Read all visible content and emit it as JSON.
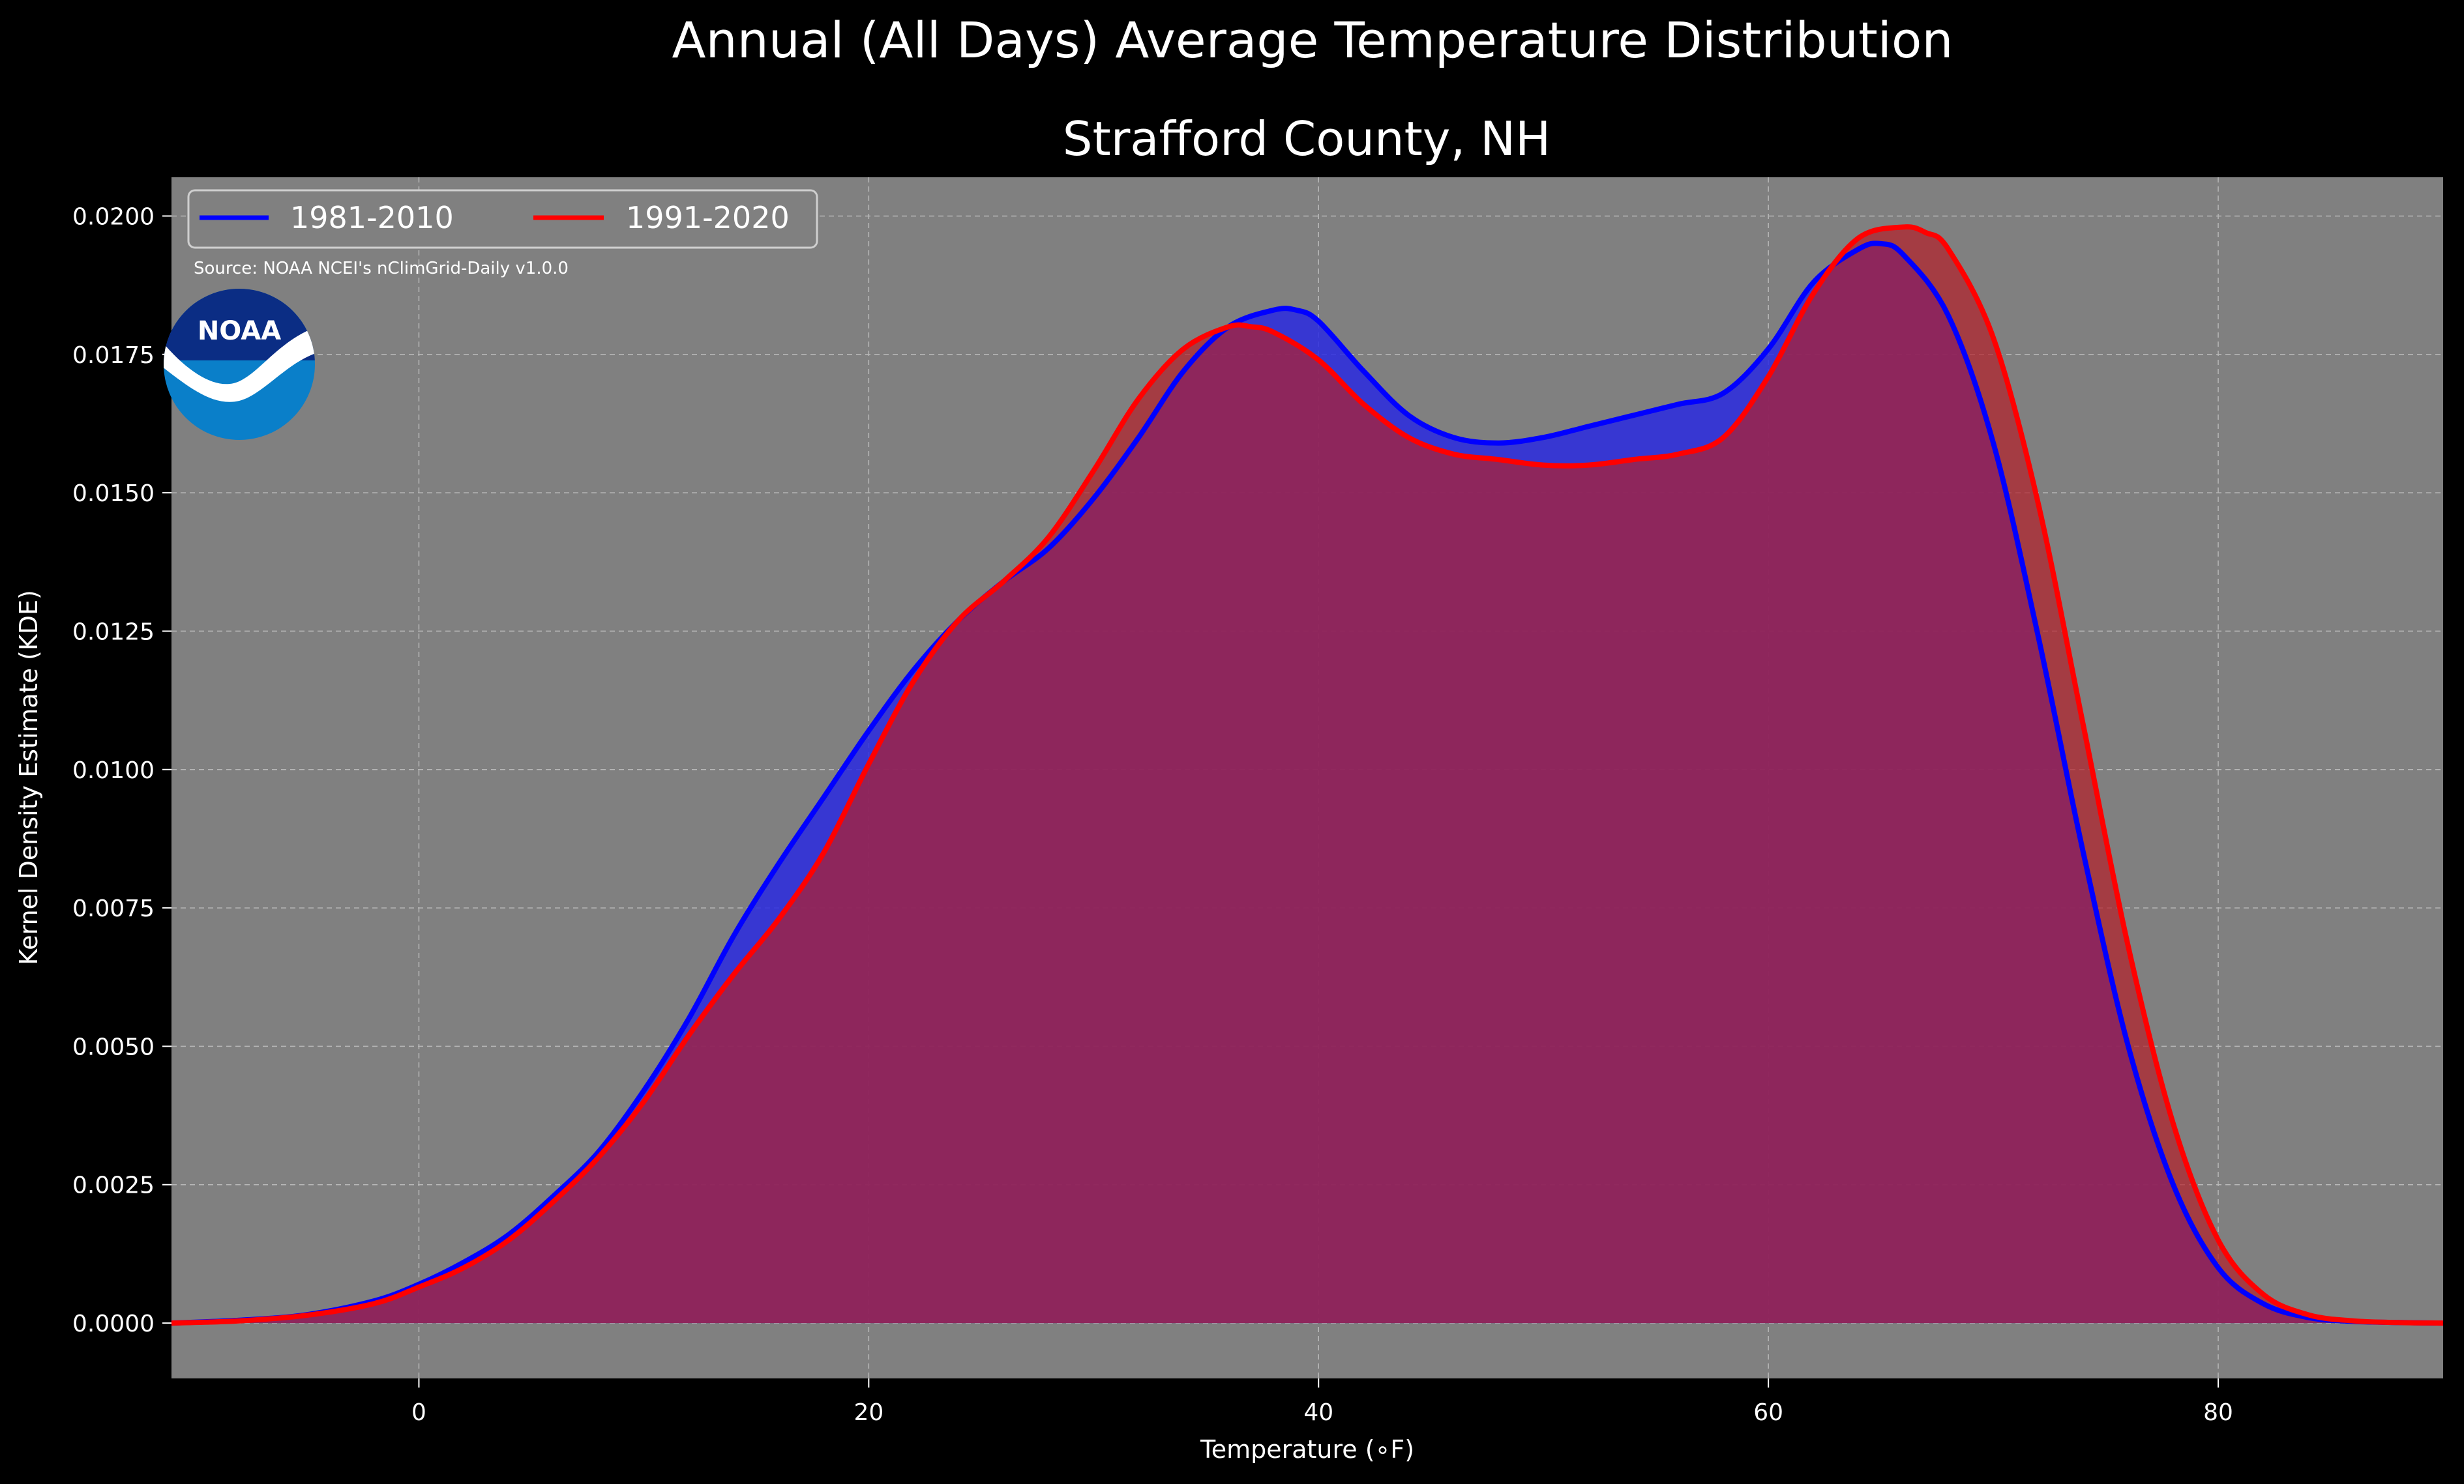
{
  "chart_data": {
    "type": "area",
    "suptitle": "Annual (All Days) Average Temperature Distribution",
    "title": "Strafford County, NH",
    "xlabel": "Temperature (∘F)",
    "ylabel": "Kernel Density Estimate (KDE)",
    "xlim": [
      -11,
      90
    ],
    "ylim": [
      -0.001,
      0.0207
    ],
    "x_ticks": [
      0,
      20,
      40,
      60,
      80
    ],
    "x_tick_labels": [
      "0",
      "20",
      "40",
      "60",
      "80"
    ],
    "y_ticks": [
      0,
      0.0025,
      0.005,
      0.0075,
      0.01,
      0.0125,
      0.015,
      0.0175,
      0.02
    ],
    "y_tick_labels": [
      "0.0000",
      "0.0025",
      "0.0050",
      "0.0075",
      "0.0100",
      "0.0125",
      "0.0150",
      "0.0175",
      "0.0200"
    ],
    "grid": true,
    "legend_position": "top-left",
    "source_note": "Source: NOAA NCEI's nClimGrid-Daily v1.0.0",
    "logo_text": "NOAA",
    "colors": {
      "background": "#000000",
      "plot_bg": "#808080",
      "series_1": "#0000ff",
      "series_2": "#ff0000",
      "fill_1": "#2a2ae0",
      "fill_2": "#b4202a"
    },
    "series": [
      {
        "name": "1981-2010",
        "color": "#0000ff",
        "x": [
          -11,
          -8,
          -5,
          -2,
          0,
          2,
          4,
          6,
          8,
          10,
          12,
          14,
          16,
          18,
          20,
          22,
          24,
          26,
          28,
          30,
          32,
          34,
          36,
          38,
          39,
          40,
          42,
          44,
          46,
          48,
          50,
          52,
          54,
          56,
          58,
          60,
          62,
          64,
          65,
          66,
          68,
          70,
          72,
          74,
          76,
          78,
          80,
          82,
          84,
          86,
          88,
          90
        ],
        "y": [
          0.0,
          5e-05,
          0.00015,
          0.0004,
          0.0007,
          0.0011,
          0.0016,
          0.0023,
          0.0031,
          0.0042,
          0.0055,
          0.007,
          0.0083,
          0.0095,
          0.0107,
          0.0118,
          0.0127,
          0.0134,
          0.014,
          0.0149,
          0.016,
          0.0172,
          0.018,
          0.0183,
          0.0183,
          0.0181,
          0.0172,
          0.0164,
          0.016,
          0.0159,
          0.016,
          0.0162,
          0.0164,
          0.0166,
          0.0168,
          0.0176,
          0.0188,
          0.0194,
          0.0195,
          0.0193,
          0.0182,
          0.0159,
          0.0124,
          0.0085,
          0.005,
          0.0025,
          0.001,
          0.00035,
          0.0001,
          3e-05,
          1e-05,
          0.0
        ]
      },
      {
        "name": "1991-2020",
        "color": "#ff0000",
        "x": [
          -11,
          -8,
          -5,
          -2,
          0,
          2,
          4,
          6,
          8,
          10,
          12,
          14,
          16,
          18,
          20,
          22,
          24,
          26,
          28,
          30,
          32,
          34,
          36,
          37,
          38,
          40,
          42,
          44,
          46,
          48,
          50,
          52,
          54,
          56,
          58,
          60,
          62,
          64,
          66,
          67,
          68,
          70,
          72,
          74,
          76,
          78,
          80,
          82,
          84,
          86,
          88,
          90
        ],
        "y": [
          0.0,
          4e-05,
          0.00014,
          0.00035,
          0.00065,
          0.001,
          0.0015,
          0.0022,
          0.003,
          0.004,
          0.0052,
          0.0063,
          0.0073,
          0.0085,
          0.0101,
          0.0116,
          0.0127,
          0.0134,
          0.0142,
          0.0154,
          0.0167,
          0.0176,
          0.018,
          0.018,
          0.0179,
          0.0174,
          0.0166,
          0.016,
          0.0157,
          0.0156,
          0.0155,
          0.0155,
          0.0156,
          0.0157,
          0.016,
          0.0171,
          0.0186,
          0.0196,
          0.0198,
          0.0197,
          0.0194,
          0.0178,
          0.0148,
          0.0108,
          0.0068,
          0.0036,
          0.0015,
          0.00052,
          0.00015,
          4e-05,
          1e-05,
          0.0
        ]
      }
    ]
  }
}
